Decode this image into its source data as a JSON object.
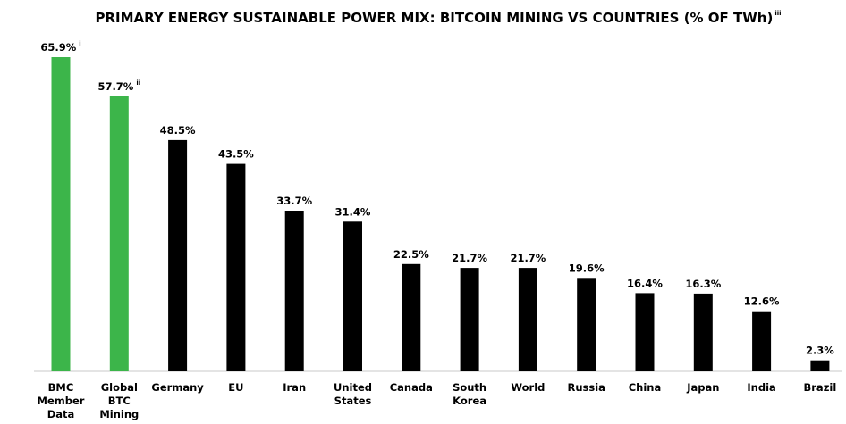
{
  "chart_data": {
    "type": "bar",
    "title": "PRIMARY ENERGY SUSTAINABLE POWER MIX: BITCOIN MINING VS COUNTRIES (% OF TWh)",
    "title_footnote": "iii",
    "unit": "%",
    "grid": false,
    "legend": "none",
    "ylim": [
      0,
      70
    ],
    "colors": {
      "highlight": "#3cb54a",
      "default": "#000000"
    },
    "categories": [
      [
        "BMC",
        "Member",
        "Data"
      ],
      [
        "Global",
        "BTC",
        "Mining"
      ],
      [
        "Germany"
      ],
      [
        "EU"
      ],
      [
        "Iran"
      ],
      [
        "United",
        "States"
      ],
      [
        "Canada"
      ],
      [
        "South",
        "Korea"
      ],
      [
        "World"
      ],
      [
        "Russia"
      ],
      [
        "China"
      ],
      [
        "Japan"
      ],
      [
        "India"
      ],
      [
        "Brazil"
      ]
    ],
    "values": [
      65.9,
      57.7,
      48.5,
      43.5,
      33.7,
      31.4,
      22.5,
      21.7,
      21.7,
      19.6,
      16.4,
      16.3,
      12.6,
      2.3
    ],
    "value_labels": [
      "65.9%",
      "57.7%",
      "48.5%",
      "43.5%",
      "33.7%",
      "31.4%",
      "22.5%",
      "21.7%",
      "21.7%",
      "19.6%",
      "16.4%",
      "16.3%",
      "12.6%",
      "2.3%"
    ],
    "value_footnotes": [
      "i",
      "ii",
      "",
      "",
      "",
      "",
      "",
      "",
      "",
      "",
      "",
      "",
      "",
      ""
    ],
    "highlighted": [
      true,
      true,
      false,
      false,
      false,
      false,
      false,
      false,
      false,
      false,
      false,
      false,
      false,
      false
    ]
  }
}
